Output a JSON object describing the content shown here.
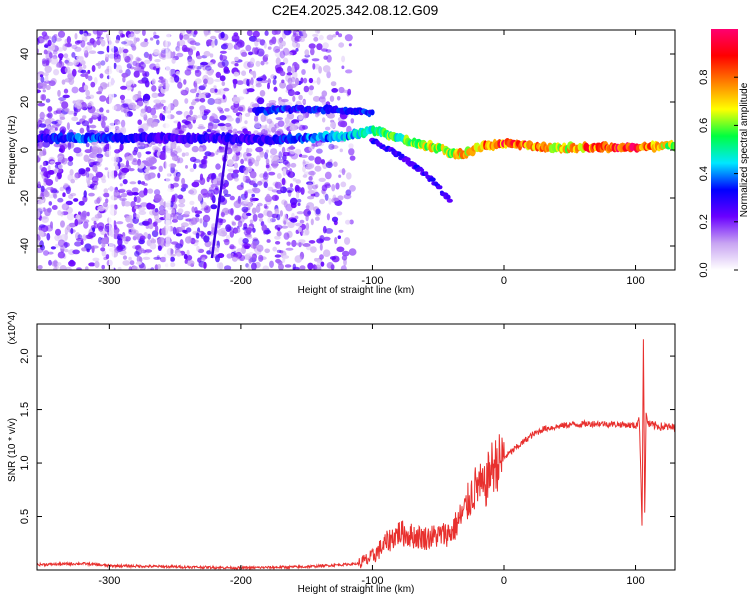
{
  "title": "C2E4.2025.342.08.12.G09",
  "chart_data": [
    {
      "type": "heatmap",
      "xlabel": "Height of straight line (km)",
      "ylabel": "Frequency (Hz)",
      "xlim": [
        -355,
        130
      ],
      "ylim": [
        -50,
        50
      ],
      "xticks": [
        -300,
        -200,
        -100,
        0,
        100
      ],
      "yticks": [
        -40,
        -20,
        0,
        20,
        40
      ],
      "colorbar": {
        "label": "Normalized spectral amplitude",
        "range": [
          0,
          1
        ],
        "ticks": [
          0.0,
          0.2,
          0.4,
          0.6,
          0.8
        ],
        "colors": [
          "#ffffff",
          "#c8a4f2",
          "#6a00ff",
          "#0000ff",
          "#00e8ff",
          "#00ff40",
          "#ffff00",
          "#ff8000",
          "#ff0000",
          "#ff0070"
        ]
      },
      "ridge": {
        "x": [
          -355,
          -320,
          -300,
          -260,
          -220,
          -180,
          -150,
          -120,
          -100,
          -90,
          -80,
          -70,
          -60,
          -50,
          -40,
          -30,
          -20,
          -10,
          0,
          10,
          40,
          70,
          100,
          130
        ],
        "frequency": [
          5,
          5,
          5,
          5,
          5,
          4,
          5,
          6,
          8,
          7,
          5,
          3,
          2,
          1,
          -1,
          -2,
          1,
          2,
          3,
          2,
          1,
          1,
          1,
          2
        ],
        "amplitude": [
          0.3,
          0.4,
          0.35,
          0.28,
          0.3,
          0.3,
          0.4,
          0.45,
          0.5,
          0.6,
          0.55,
          0.65,
          0.7,
          0.7,
          0.7,
          0.75,
          0.85,
          0.9,
          0.9,
          0.9,
          0.7,
          0.9,
          0.95,
          0.6
        ]
      },
      "upper_branch": {
        "x": [
          -190,
          -170,
          -150,
          -130,
          -110,
          -100
        ],
        "frequency": [
          16,
          17,
          17,
          17,
          16,
          15
        ]
      },
      "lower_branch": {
        "x": [
          -100,
          -90,
          -80,
          -70,
          -60,
          -50,
          -40
        ],
        "frequency": [
          4,
          1,
          -2,
          -6,
          -10,
          -15,
          -22
        ]
      }
    },
    {
      "type": "line",
      "xlabel": "Height of straight line (km)",
      "ylabel": "SNR (10 * v/v)",
      "y_multiplier": "(x10^4)",
      "xlim": [
        -355,
        130
      ],
      "ylim": [
        0,
        2.3
      ],
      "xticks": [
        -300,
        -200,
        -100,
        0,
        100
      ],
      "yticks": [
        0.5,
        1.0,
        1.5,
        2.0
      ],
      "ytick_labels": [
        "0.5",
        "1.0",
        "1.5",
        "2.0"
      ],
      "series": [
        {
          "color": "#e8302e",
          "x": [
            -355,
            -320,
            -300,
            -250,
            -200,
            -150,
            -110,
            -100,
            -90,
            -80,
            -70,
            -60,
            -50,
            -40,
            -30,
            -25,
            -20,
            -15,
            -10,
            -5,
            0,
            10,
            20,
            30,
            50,
            70,
            90,
            100,
            103,
            105,
            106,
            107,
            108,
            110,
            115,
            120,
            130
          ],
          "y": [
            0.05,
            0.06,
            0.04,
            0.03,
            0.02,
            0.03,
            0.06,
            0.12,
            0.25,
            0.35,
            0.32,
            0.3,
            0.32,
            0.35,
            0.55,
            0.7,
            0.8,
            0.75,
            0.95,
            1.0,
            1.05,
            1.15,
            1.25,
            1.32,
            1.36,
            1.37,
            1.36,
            1.35,
            1.4,
            0.4,
            2.25,
            0.5,
            1.45,
            1.36,
            1.35,
            1.34,
            1.33
          ]
        }
      ]
    }
  ]
}
